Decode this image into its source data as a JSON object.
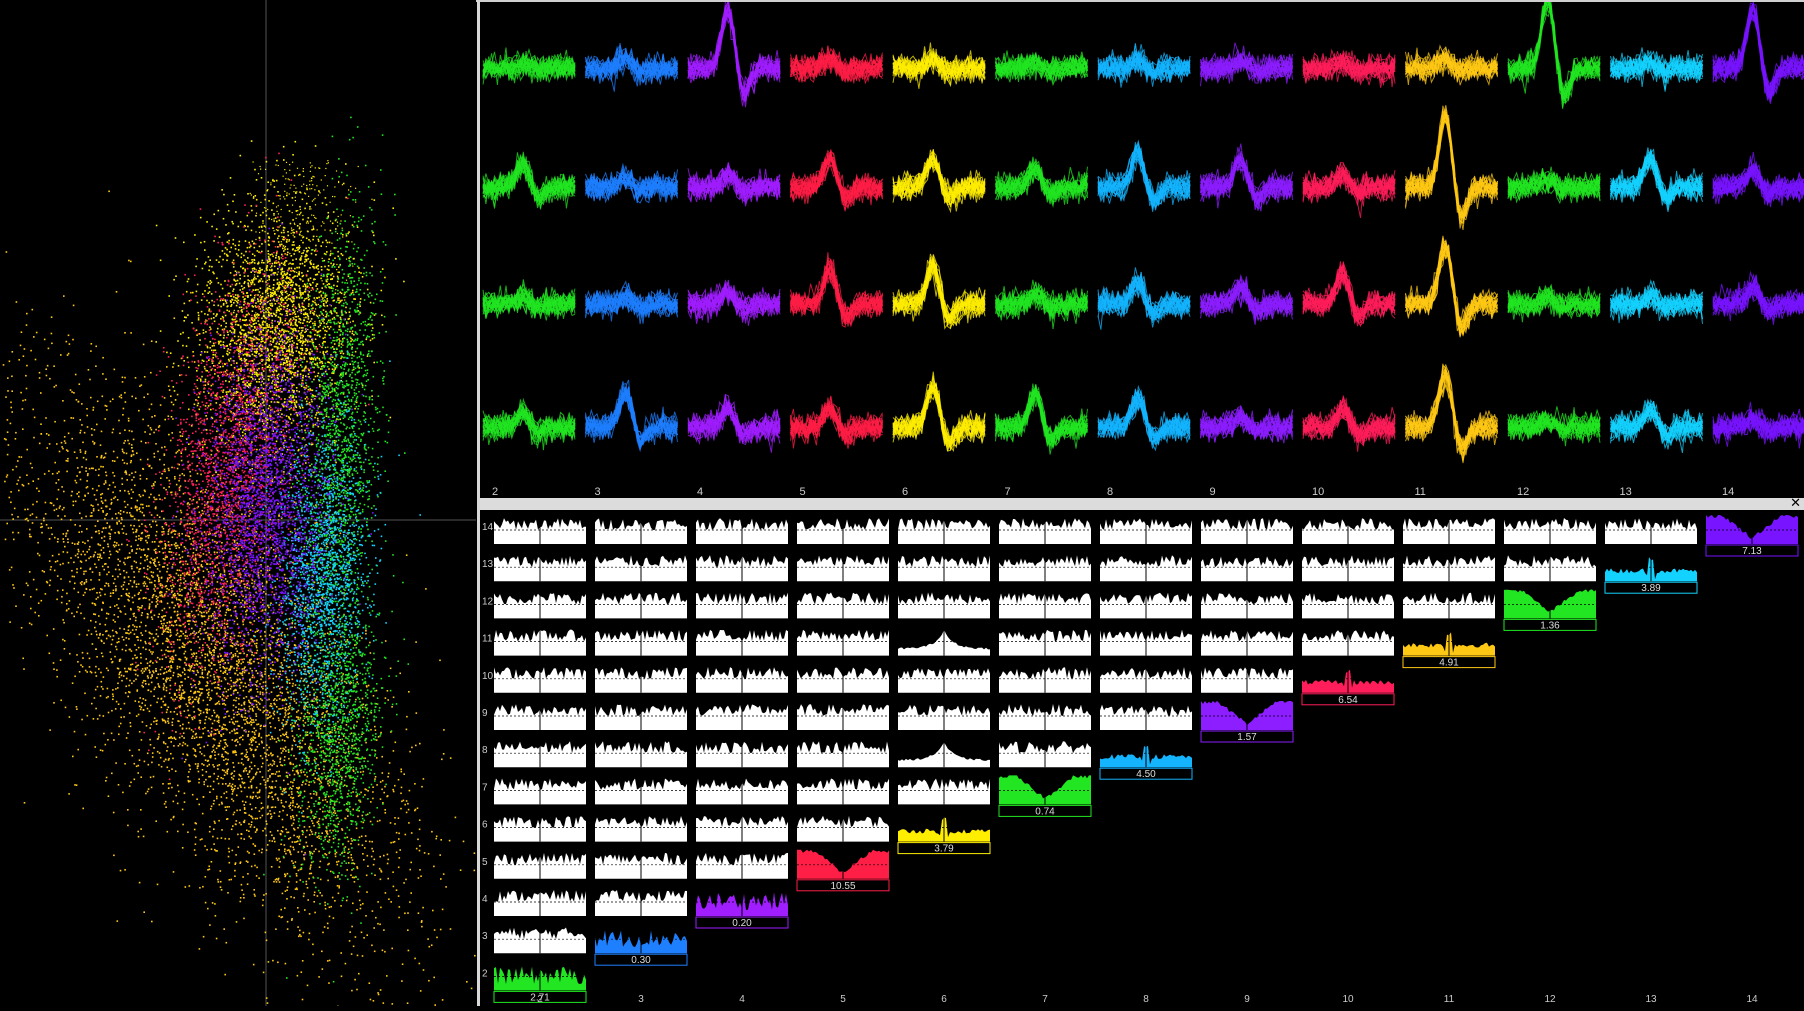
{
  "units": [
    {
      "id": "2",
      "color": "#22e622",
      "acg_value": "2.71"
    },
    {
      "id": "3",
      "color": "#1e7fff",
      "acg_value": "0.30"
    },
    {
      "id": "4",
      "color": "#a01eff",
      "acg_value": "0.20"
    },
    {
      "id": "5",
      "color": "#ff1e46",
      "acg_value": "10.55"
    },
    {
      "id": "6",
      "color": "#ffee00",
      "acg_value": "3.79"
    },
    {
      "id": "7",
      "color": "#22e622",
      "acg_value": "0.74"
    },
    {
      "id": "8",
      "color": "#14b4ff",
      "acg_value": "4.50"
    },
    {
      "id": "9",
      "color": "#8c1eff",
      "acg_value": "1.57"
    },
    {
      "id": "10",
      "color": "#ff1e5a",
      "acg_value": "6.54"
    },
    {
      "id": "11",
      "color": "#ffc814",
      "acg_value": "4.91"
    },
    {
      "id": "12",
      "color": "#22e622",
      "acg_value": "1.36"
    },
    {
      "id": "13",
      "color": "#14d2ff",
      "acg_value": "3.89"
    },
    {
      "id": "14",
      "color": "#7814ff",
      "acg_value": "7.13"
    }
  ],
  "ccg": {
    "close_icon": "close-icon",
    "close_symbol": "✕"
  },
  "scatter": {
    "clusters": [
      {
        "color": "#ffc814"
      },
      {
        "color": "#ffee00"
      },
      {
        "color": "#ff1e5a"
      },
      {
        "color": "#22e622"
      },
      {
        "color": "#14d2ff"
      },
      {
        "color": "#7814ff"
      }
    ]
  }
}
